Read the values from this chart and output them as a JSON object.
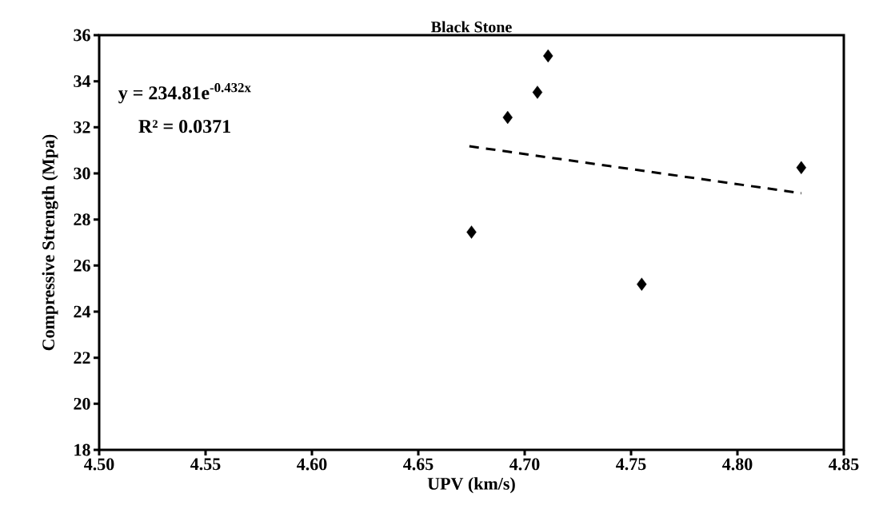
{
  "chart_data": {
    "type": "scatter",
    "title": "Black Stone",
    "xlabel": "UPV (km/s)",
    "ylabel": "Compressive Strength (Mpa)",
    "xlim": [
      4.5,
      4.85
    ],
    "xticks": [
      {
        "value": 4.5,
        "label": "4.50"
      },
      4.55,
      {
        "value": 4.6,
        "label": "4.60"
      },
      4.65,
      {
        "value": 4.7,
        "label": "4.70"
      },
      4.75,
      {
        "value": 4.8,
        "label": "4.80"
      },
      4.85
    ],
    "ylim": [
      18,
      36
    ],
    "yticks": [
      18,
      20,
      22,
      24,
      26,
      28,
      30,
      32,
      34,
      36
    ],
    "marker": "diamond",
    "annotations": [
      "y = 234.81e$^{-0.432x}$",
      "R² = 0.0371"
    ],
    "series": [
      {
        "color": "#000000",
        "x": [
          4.675,
          4.692,
          4.706,
          4.711,
          4.755,
          4.83
        ],
        "values": [
          27.45,
          32.43,
          33.52,
          35.1,
          25.19,
          30.25
        ]
      },
      {
        "type": "line",
        "line_style": "dashed",
        "marker": "none",
        "color": "#000000",
        "x": [
          4.674,
          4.83
        ],
        "values": [
          31.18,
          29.14
        ]
      }
    ]
  }
}
